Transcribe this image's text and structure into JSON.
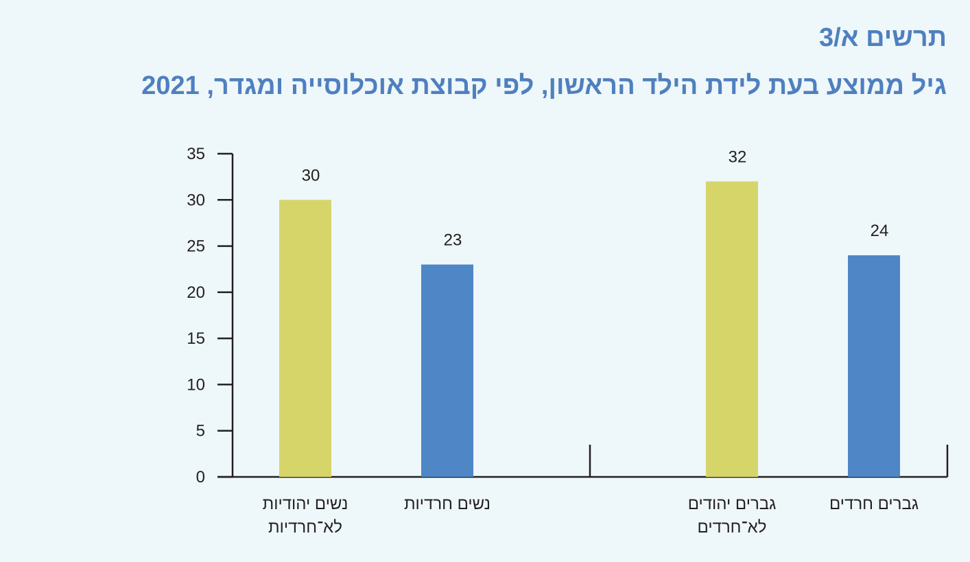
{
  "figure": {
    "label": "תרשים א/3",
    "title": "גיל ממוצע בעת לידת הילד הראשון, לפי קבוצת אוכלוסייה ומגדר, 2021"
  },
  "chart_data": {
    "type": "bar",
    "title": "גיל ממוצע בעת לידת הילד הראשון, לפי קבוצת אוכלוסייה ומגדר, 2021",
    "xlabel": "",
    "ylabel": "",
    "ylim": [
      0,
      35
    ],
    "yticks": [
      0,
      5,
      10,
      15,
      20,
      25,
      30,
      35
    ],
    "grid": false,
    "legend": "none",
    "groups": [
      {
        "bars": [
          {
            "label_lines": [
              "נשים יהודיות",
              "לא־חרדיות"
            ],
            "value": 30,
            "value_label": "30",
            "color": "#d6d56a"
          },
          {
            "label_lines": [
              "נשים חרדיות"
            ],
            "value": 23,
            "value_label": "23",
            "color": "#4f86c6"
          }
        ]
      },
      {
        "bars": [
          {
            "label_lines": [
              "גברים יהודים",
              "לא־חרדים"
            ],
            "value": 32,
            "value_label": "32",
            "color": "#d6d56a"
          },
          {
            "label_lines": [
              "גברים חרדים"
            ],
            "value": 24,
            "value_label": "24",
            "color": "#4f86c6"
          }
        ]
      }
    ]
  }
}
